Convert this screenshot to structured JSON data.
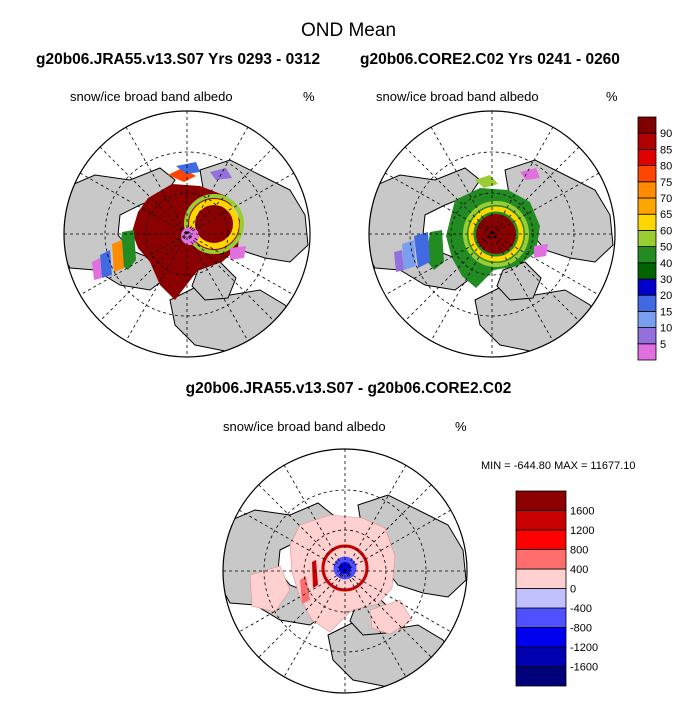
{
  "figure": {
    "title": "OND Mean",
    "panels": [
      {
        "run": "g20b06.JRA55.v13.S07  Yrs 0293 - 0312",
        "variable": "snow/ice broad band albedo",
        "units": "%"
      },
      {
        "run": "g20b06.CORE2.C02  Yrs 0241 - 0260",
        "variable": "snow/ice broad band albedo",
        "units": "%"
      },
      {
        "run": "g20b06.JRA55.v13.S07 - g20b06.CORE2.C02",
        "variable": "snow/ice broad band albedo",
        "units": "%",
        "stats": "MIN = -644.80 MAX = 11677.10"
      }
    ]
  },
  "chart_data": [
    {
      "type": "heatmap",
      "projection": "north polar stereographic",
      "title": "g20b06.JRA55.v13.S07  Yrs 0293 - 0312",
      "variable": "snow/ice broad band albedo",
      "units": "%",
      "colorbar": {
        "levels": [
          5,
          10,
          15,
          20,
          30,
          40,
          50,
          60,
          65,
          70,
          75,
          80,
          85,
          90
        ],
        "colors": [
          "#e070e0",
          "#9370db",
          "#7b9ff0",
          "#4169e1",
          "#0000cd",
          "#006400",
          "#228b22",
          "#9acd32",
          "#ffd700",
          "#ffa500",
          "#ff8c00",
          "#ff4500",
          "#e00000",
          "#b00000",
          "#800000"
        ]
      }
    },
    {
      "type": "heatmap",
      "projection": "north polar stereographic",
      "title": "g20b06.CORE2.C02  Yrs 0241 - 0260",
      "variable": "snow/ice broad band albedo",
      "units": "%",
      "colorbar": "shared with panel 1"
    },
    {
      "type": "heatmap",
      "projection": "north polar stereographic",
      "title": "g20b06.JRA55.v13.S07 - g20b06.CORE2.C02",
      "variable": "snow/ice broad band albedo",
      "units": "%",
      "min": -644.8,
      "max": 11677.1,
      "colorbar": {
        "levels": [
          -1600,
          -1200,
          -800,
          -400,
          0,
          400,
          800,
          1200,
          1600
        ],
        "colors": [
          "#00007a",
          "#0000b0",
          "#0000ee",
          "#5050ff",
          "#c0c0ff",
          "#ffd0d0",
          "#ff6e6e",
          "#ff0000",
          "#c80000",
          "#8b0000"
        ]
      }
    }
  ]
}
